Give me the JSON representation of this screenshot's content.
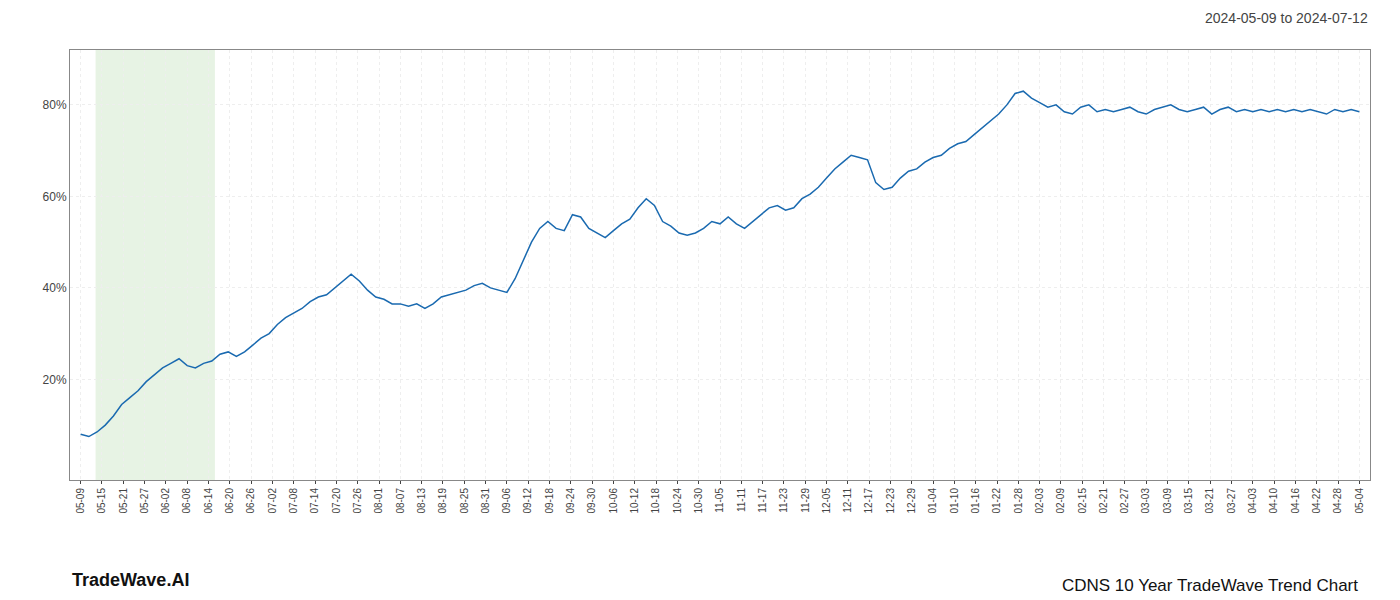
{
  "chart_data": {
    "type": "line",
    "title": "CDNS 10 Year TradeWave Trend Chart",
    "subtitle": "2024-05-09 to 2024-07-12",
    "annotations": [
      "TradeWave.AI"
    ],
    "color": "#1a6ab0",
    "grid": true,
    "xlim": [
      -0.5,
      60.5
    ],
    "xticks": [
      {
        "value": 0,
        "label": "05-09"
      },
      {
        "value": 1,
        "label": "05-15"
      },
      {
        "value": 2,
        "label": "05-21"
      },
      {
        "value": 3,
        "label": "05-27"
      },
      {
        "value": 4,
        "label": "06-02"
      },
      {
        "value": 5,
        "label": "06-08"
      },
      {
        "value": 6,
        "label": "06-14"
      },
      {
        "value": 7,
        "label": "06-20"
      },
      {
        "value": 8,
        "label": "06-26"
      },
      {
        "value": 9,
        "label": "07-02"
      },
      {
        "value": 10,
        "label": "07-08"
      },
      {
        "value": 11,
        "label": "07-14"
      },
      {
        "value": 12,
        "label": "07-20"
      },
      {
        "value": 13,
        "label": "07-26"
      },
      {
        "value": 14,
        "label": "08-01"
      },
      {
        "value": 15,
        "label": "08-07"
      },
      {
        "value": 16,
        "label": "08-13"
      },
      {
        "value": 17,
        "label": "08-19"
      },
      {
        "value": 18,
        "label": "08-25"
      },
      {
        "value": 19,
        "label": "08-31"
      },
      {
        "value": 20,
        "label": "09-06"
      },
      {
        "value": 21,
        "label": "09-12"
      },
      {
        "value": 22,
        "label": "09-18"
      },
      {
        "value": 23,
        "label": "09-24"
      },
      {
        "value": 24,
        "label": "09-30"
      },
      {
        "value": 25,
        "label": "10-06"
      },
      {
        "value": 26,
        "label": "10-12"
      },
      {
        "value": 27,
        "label": "10-18"
      },
      {
        "value": 28,
        "label": "10-24"
      },
      {
        "value": 29,
        "label": "10-30"
      },
      {
        "value": 30,
        "label": "11-05"
      },
      {
        "value": 31,
        "label": "11-11"
      },
      {
        "value": 32,
        "label": "11-17"
      },
      {
        "value": 33,
        "label": "11-23"
      },
      {
        "value": 34,
        "label": "11-29"
      },
      {
        "value": 35,
        "label": "12-05"
      },
      {
        "value": 36,
        "label": "12-11"
      },
      {
        "value": 37,
        "label": "12-17"
      },
      {
        "value": 38,
        "label": "12-23"
      },
      {
        "value": 39,
        "label": "12-29"
      },
      {
        "value": 40,
        "label": "01-04"
      },
      {
        "value": 41,
        "label": "01-10"
      },
      {
        "value": 42,
        "label": "01-16"
      },
      {
        "value": 43,
        "label": "01-22"
      },
      {
        "value": 44,
        "label": "01-28"
      },
      {
        "value": 45,
        "label": "02-03"
      },
      {
        "value": 46,
        "label": "02-09"
      },
      {
        "value": 47,
        "label": "02-15"
      },
      {
        "value": 48,
        "label": "02-21"
      },
      {
        "value": 49,
        "label": "02-27"
      },
      {
        "value": 50,
        "label": "03-03"
      },
      {
        "value": 51,
        "label": "03-09"
      },
      {
        "value": 52,
        "label": "03-15"
      },
      {
        "value": 53,
        "label": "03-21"
      },
      {
        "value": 54,
        "label": "03-27"
      },
      {
        "value": 55,
        "label": "04-03"
      },
      {
        "value": 56,
        "label": "04-10"
      },
      {
        "value": 57,
        "label": "04-16"
      },
      {
        "value": 58,
        "label": "04-22"
      },
      {
        "value": 59,
        "label": "04-28"
      },
      {
        "value": 60,
        "label": "05-04"
      }
    ],
    "ylim": [
      -2,
      92
    ],
    "yticks": [
      {
        "value": 20,
        "label": "20%"
      },
      {
        "value": 40,
        "label": "40%"
      },
      {
        "value": 60,
        "label": "60%"
      },
      {
        "value": 80,
        "label": "80%"
      }
    ],
    "shaded_x": [
      0.7,
      6.3
    ],
    "shade_color": "#daecd5",
    "values": [
      8.0,
      7.5,
      8.5,
      10.0,
      12.0,
      14.5,
      16.0,
      17.5,
      19.5,
      21.0,
      22.5,
      23.5,
      24.5,
      23.0,
      22.5,
      23.5,
      24.0,
      25.5,
      26.0,
      25.0,
      26.0,
      27.5,
      29.0,
      30.0,
      32.0,
      33.5,
      34.5,
      35.5,
      37.0,
      38.0,
      38.5,
      40.0,
      41.5,
      43.0,
      41.5,
      39.5,
      38.0,
      37.5,
      36.5,
      36.5,
      36.0,
      36.5,
      35.5,
      36.5,
      38.0,
      38.5,
      39.0,
      39.5,
      40.5,
      41.0,
      40.0,
      39.5,
      39.0,
      42.0,
      46.0,
      50.0,
      53.0,
      54.5,
      53.0,
      52.5,
      56.0,
      55.5,
      53.0,
      52.0,
      51.0,
      52.5,
      54.0,
      55.0,
      57.5,
      59.5,
      58.0,
      54.5,
      53.5,
      52.0,
      51.5,
      52.0,
      53.0,
      54.5,
      54.0,
      55.5,
      54.0,
      53.0,
      54.5,
      56.0,
      57.5,
      58.0,
      57.0,
      57.5,
      59.5,
      60.5,
      62.0,
      64.0,
      66.0,
      67.5,
      69.0,
      68.5,
      68.0,
      63.0,
      61.5,
      62.0,
      64.0,
      65.5,
      66.0,
      67.5,
      68.5,
      69.0,
      70.5,
      71.5,
      72.0,
      73.5,
      75.0,
      76.5,
      78.0,
      80.0,
      82.5,
      83.0,
      81.5,
      80.5,
      79.5,
      80.0,
      78.5,
      78.0,
      79.5,
      80.0,
      78.5,
      79.0,
      78.5,
      79.0,
      79.5,
      78.5,
      78.0,
      79.0,
      79.5,
      80.0,
      79.0,
      78.5,
      79.0,
      79.5,
      78.0,
      79.0,
      79.5,
      78.5,
      79.0,
      78.5,
      79.0,
      78.5,
      79.0,
      78.5,
      79.0,
      78.5,
      79.0,
      78.5,
      78.0,
      79.0,
      78.5,
      79.0,
      78.5
    ]
  }
}
